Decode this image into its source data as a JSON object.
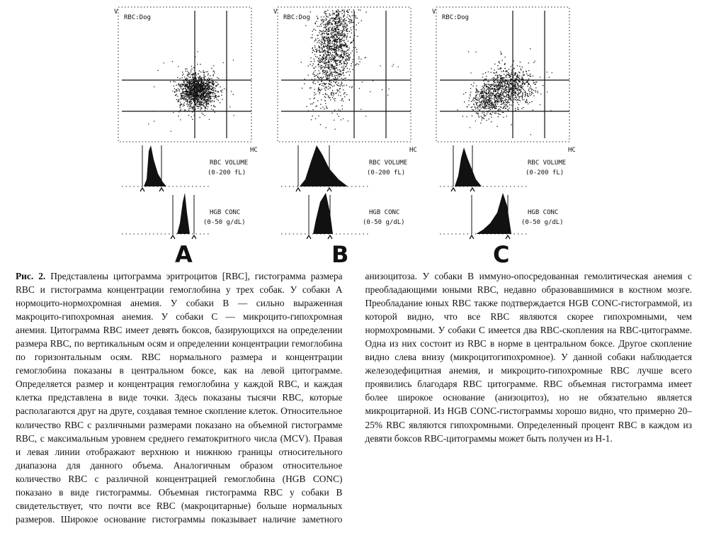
{
  "figure": {
    "panels": [
      {
        "letter": "A",
        "scatter_label": "RBC:Dog",
        "y_axis": "V",
        "x_axis": "HC",
        "volume_label": "RBC VOLUME",
        "volume_range": "(0-200 fL)",
        "hgb_label": "HGB CONC",
        "hgb_range": "(0-50 g/dL)"
      },
      {
        "letter": "B",
        "scatter_label": "RBC:Dog",
        "y_axis": "V",
        "x_axis": "HC",
        "volume_label": "RBC VOLUME",
        "volume_range": "(0-200 fL)",
        "hgb_label": "HGB CONC",
        "hgb_range": "(0-50 g/dL)"
      },
      {
        "letter": "C",
        "scatter_label": "RBC:Dog",
        "y_axis": "V",
        "x_axis": "HC",
        "volume_label": "RBC VOLUME",
        "volume_range": "(0-200 fL)",
        "hgb_label": "HGB CONC",
        "hgb_range": "(0-50 g/dL)"
      }
    ]
  },
  "caption": {
    "label": "Рис. 2.",
    "text": " Представлены цитограмма эритроцитов [RBC], гистограмма размера RBC и гистограмма концентрации гемоглобина у трех собак. У собаки А нормоцито-нормохромная анемия. У собаки В — сильно выраженная макроцито-гипохромная анемия. У собаки С — микроцито-гипохромная анемия. Цитограмма RBC имеет девять боксов, базирующихся на определении размера RBC, по вертикальным осям и определении концентрации гемоглобина по горизонтальным осям. RBC нормального размера и концентрации гемоглобина показаны в центральном боксе, как на левой цитограмме. Определяется размер и концентрация гемоглобина у каждой RBC, и каждая клетка представлена в виде точки. Здесь показаны тысячи RBC, которые располагаются друг на друге, создавая темное скопление клеток. Относительное количество RBC с различными размерами показано на объемной гистограмме RBC, с максимальным уровнем среднего гематокритного числа (MCV). Правая и левая линии отображают верхнюю и нижнюю границы относительного диапазона для данного объема. Аналогичным образом относительное количество RBC с различной концентрацией гемоглобина (HGB CONC) показано в виде гистограммы. Объемная гистограмма RBC у собаки В свидетельствует, что почти все RBC (макроцитарные) больше нормальных размеров. Широкое основание гистограммы показывает наличие заметного анизоцитоза. У собаки В иммуно-опосредованная гемолитическая анемия с преобладающими юными RBC, недавно образовавшимися в костном мозге. Преобладание юных RBC также подтверждается HGB CONC-гистограммой, из которой видно, что все RBC являются скорее гипохромными, чем нормохромными. У собаки С имеется два RBC-скопления на RBC-цитограмме. Одна из них состоит из RBC в норме в центральном боксе. Другое скопление видно слева внизу (микроцитогипохромное). У данной собаки наблюдается железодефицитная анемия, и микроцито-гипохромные RBC лучше всего проявились благодаря RBC цитограмме. RBC объемная гистограмма имеет более широкое основание (анизоцитоз), но не обязательно является микроцитарной. Из HGB CONC-гистограммы хорошо видно, что примерно 20–25% RBC являются гипохромными. Определенный процент RBC в каждом из девяти боксов RBC-цитограммы может быть получен из Н-1."
  }
}
